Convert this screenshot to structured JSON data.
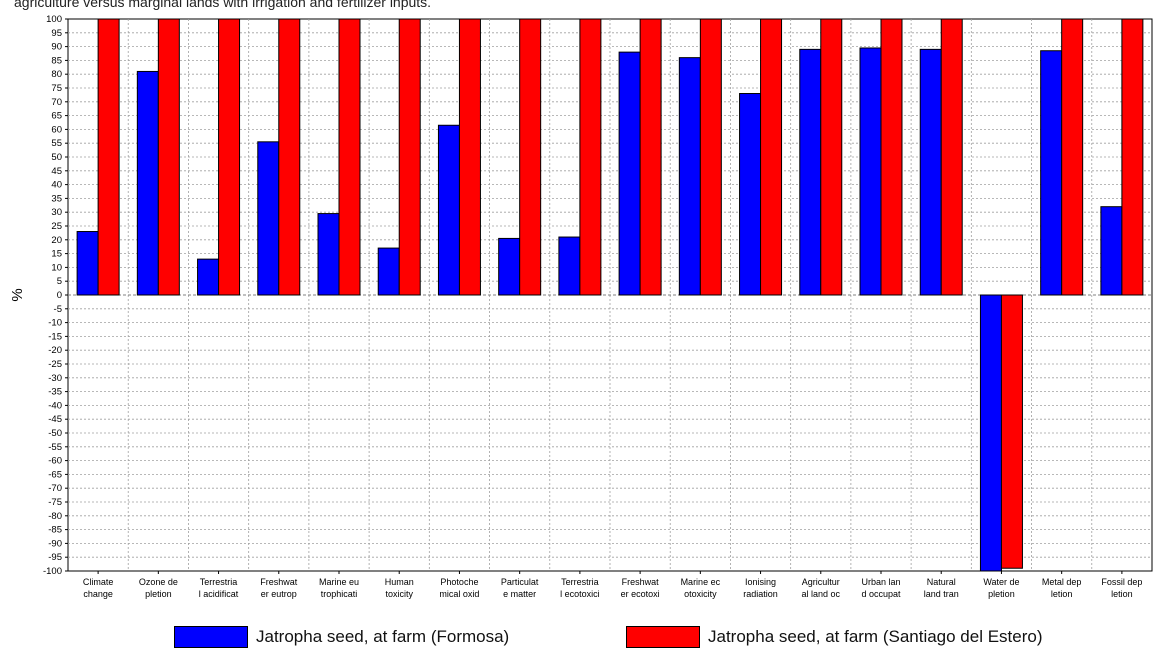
{
  "caption": "agriculture versus marginal lands with irrigation and fertilizer inputs.",
  "chart_data": {
    "type": "bar",
    "ylabel": "%",
    "ylim": [
      -100,
      100
    ],
    "ytick_step": 5,
    "grid": true,
    "legend_position": "bottom",
    "categories": [
      [
        "Climate",
        "change"
      ],
      [
        "Ozone de",
        "pletion"
      ],
      [
        "Terrestria",
        "l acidificat"
      ],
      [
        "Freshwat",
        "er eutrop"
      ],
      [
        "Marine eu",
        "trophicati"
      ],
      [
        "Human",
        "toxicity"
      ],
      [
        "Photoche",
        "mical oxid"
      ],
      [
        "Particulat",
        "e matter"
      ],
      [
        "Terrestria",
        "l ecotoxici"
      ],
      [
        "Freshwat",
        "er ecotoxi"
      ],
      [
        "Marine ec",
        "otoxicity"
      ],
      [
        "Ionising",
        "radiation"
      ],
      [
        "Agricultur",
        "al land oc"
      ],
      [
        "Urban lan",
        "d occupat"
      ],
      [
        "Natural",
        "land tran"
      ],
      [
        "Water de",
        "pletion"
      ],
      [
        "Metal dep",
        "letion"
      ],
      [
        "Fossil dep",
        "letion"
      ]
    ],
    "series": [
      {
        "name": "Jatropha seed, at farm (Formosa)",
        "color": "#0000ff",
        "values": [
          23,
          81,
          13,
          55.5,
          29.5,
          17,
          61.5,
          20.5,
          21,
          88,
          86,
          73,
          89,
          89.5,
          89,
          -100,
          88.5,
          32
        ]
      },
      {
        "name": "Jatropha seed, at farm (Santiago del Estero)",
        "color": "#ff0000",
        "values": [
          100,
          100,
          100,
          100,
          100,
          100,
          100,
          100,
          100,
          100,
          100,
          100,
          100,
          100,
          100,
          -99,
          100,
          100
        ]
      }
    ]
  }
}
